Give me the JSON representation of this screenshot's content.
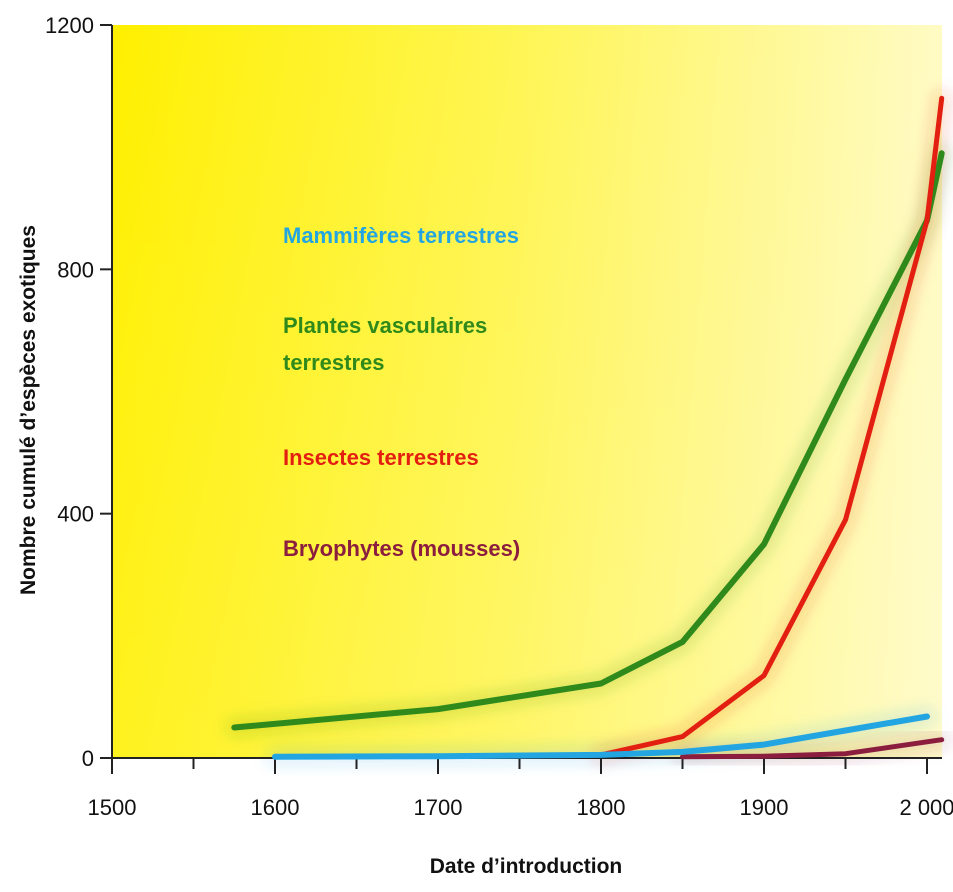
{
  "chart_data": {
    "type": "line",
    "xlabel": "Date d’introduction",
    "ylabel": "Nombre cumulé d’espèces exotiques",
    "xlim": [
      1500,
      2010
    ],
    "ylim": [
      0,
      1200
    ],
    "x_ticks": [
      1500,
      1600,
      1700,
      1800,
      1900,
      2000
    ],
    "x_tick_labels": [
      "1500",
      "1600",
      "1700",
      "1800",
      "1900",
      "2 000"
    ],
    "y_ticks": [
      0,
      400,
      800,
      1200
    ],
    "y_tick_labels": [
      "0",
      "400",
      "800",
      "1200"
    ],
    "grid": false,
    "legend_position": "inside left",
    "background": "yellow gradient",
    "series": [
      {
        "name": "Mammifères terrestres",
        "color": "#23a5e1",
        "points": [
          {
            "x": 1600,
            "y": 2
          },
          {
            "x": 1700,
            "y": 3
          },
          {
            "x": 1800,
            "y": 5
          },
          {
            "x": 1850,
            "y": 10
          },
          {
            "x": 1900,
            "y": 22
          },
          {
            "x": 1950,
            "y": 45
          },
          {
            "x": 2000,
            "y": 68
          }
        ]
      },
      {
        "name": "Plantes vasculaires terrestres",
        "legend_lines": [
          "Plantes vasculaires",
          "terrestres"
        ],
        "color": "#2f8a1b",
        "points": [
          {
            "x": 1575,
            "y": 50
          },
          {
            "x": 1700,
            "y": 80
          },
          {
            "x": 1800,
            "y": 122
          },
          {
            "x": 1850,
            "y": 190
          },
          {
            "x": 1900,
            "y": 350
          },
          {
            "x": 1950,
            "y": 620
          },
          {
            "x": 2000,
            "y": 880
          },
          {
            "x": 2009,
            "y": 990
          }
        ]
      },
      {
        "name": "Insectes terrestres",
        "color": "#e31f11",
        "points": [
          {
            "x": 1800,
            "y": 5
          },
          {
            "x": 1850,
            "y": 35
          },
          {
            "x": 1900,
            "y": 135
          },
          {
            "x": 1950,
            "y": 390
          },
          {
            "x": 2000,
            "y": 880
          },
          {
            "x": 2009,
            "y": 1080
          }
        ]
      },
      {
        "name": "Bryophytes (mousses)",
        "color": "#8b1e3f",
        "points": [
          {
            "x": 1850,
            "y": 2
          },
          {
            "x": 1900,
            "y": 3
          },
          {
            "x": 1950,
            "y": 7
          },
          {
            "x": 2009,
            "y": 30
          }
        ]
      }
    ]
  }
}
